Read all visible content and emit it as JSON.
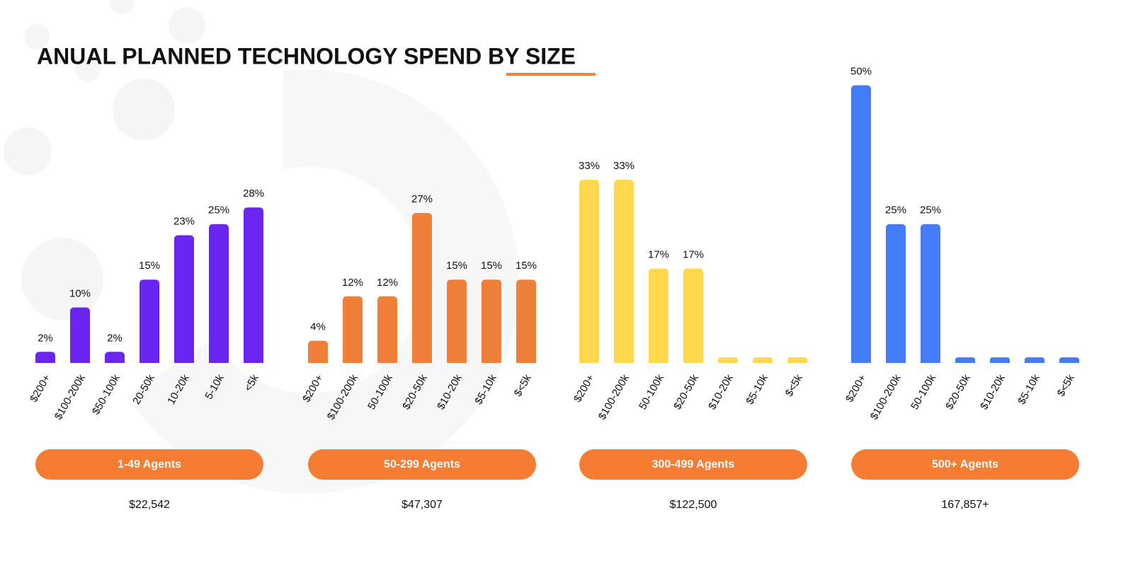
{
  "title": "ANUAL PLANNED TECHNOLOGY SPEND BY SIZE",
  "chart_data": [
    {
      "type": "bar",
      "subtitle": "1-49 Agents",
      "annotation": "$22,542",
      "color": "#6a25f0",
      "categories": [
        "$200+",
        "$100-200k",
        "$50-100k",
        "20-50k",
        "10-20k",
        "5-10k",
        "<5k"
      ],
      "values": [
        2,
        10,
        2,
        15,
        23,
        25,
        28
      ],
      "value_labels": [
        "2%",
        "10%",
        "2%",
        "15%",
        "23%",
        "25%",
        "28%"
      ]
    },
    {
      "type": "bar",
      "subtitle": "50-299 Agents",
      "annotation": "$47,307",
      "color": "#f07f3a",
      "categories": [
        "$200+",
        "$100-200k",
        "50-100k",
        "$20-50k",
        "$10-20k",
        "$5-10k",
        "$<5k"
      ],
      "values": [
        4,
        12,
        12,
        27,
        15,
        15,
        15
      ],
      "value_labels": [
        "4%",
        "12%",
        "12%",
        "27%",
        "15%",
        "15%",
        "15%"
      ]
    },
    {
      "type": "bar",
      "subtitle": "300-499 Agents",
      "annotation": "$122,500",
      "color": "#ffd84d",
      "categories": [
        "$200+",
        "$100-200k",
        "50-100k",
        "$20-50k",
        "$10-20k",
        "$5-10k",
        "$<5k"
      ],
      "values": [
        33,
        33,
        17,
        17,
        1,
        1,
        1
      ],
      "value_labels": [
        "33%",
        "33%",
        "17%",
        "17%",
        null,
        null,
        null
      ]
    },
    {
      "type": "bar",
      "subtitle": "500+ Agents",
      "annotation": "167,857+",
      "color": "#437bf9",
      "categories": [
        "$200+",
        "$100-200k",
        "50-100k",
        "$20-50k",
        "$10-20k",
        "$5-10k",
        "$<5k"
      ],
      "values": [
        50,
        25,
        25,
        1,
        1,
        1,
        1
      ],
      "value_labels": [
        "50%",
        "25%",
        "25%",
        null,
        null,
        null,
        null
      ]
    }
  ]
}
